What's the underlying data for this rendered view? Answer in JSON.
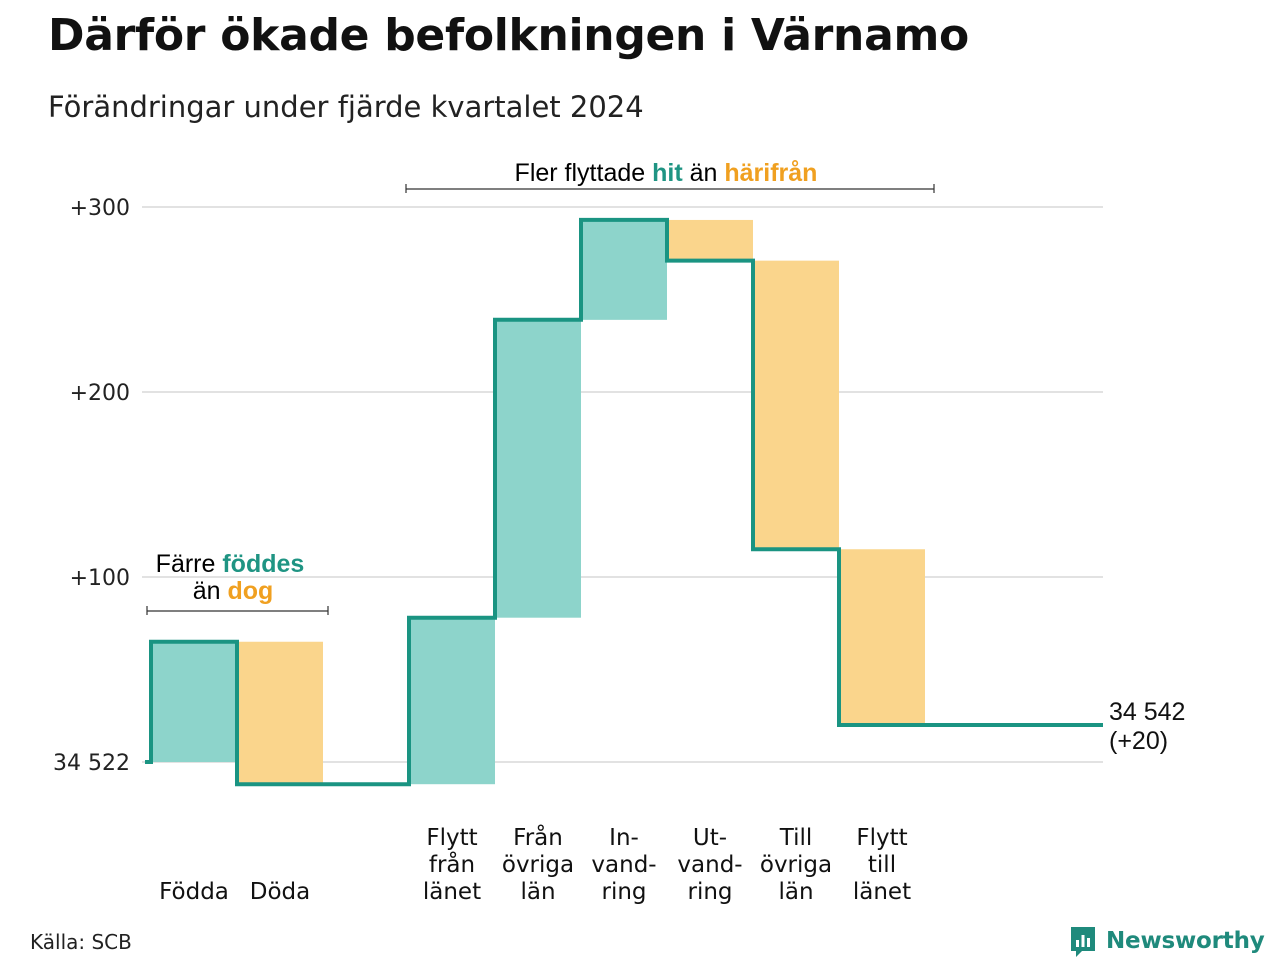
{
  "title": "Därför ökade befolkningen i Värnamo",
  "subtitle": "Förändringar under fjärde kvartalet 2024",
  "source": "Källa: SCB",
  "brand": "Newsworthy",
  "colors": {
    "positive": "#8dd4cb",
    "negative": "#fad58c",
    "line": "#1a9482",
    "accent_pos": "#1f9483",
    "accent_neg": "#f0a020",
    "grid": "#e2e2e2"
  },
  "annotations": {
    "births": {
      "line1_pre": "Färre ",
      "line1_hl": "föddes",
      "line2_pre": "än ",
      "line2_hl": "dog"
    },
    "moves": {
      "pre": "Fler flyttade ",
      "hl1": "hit",
      "mid": " än ",
      "hl2": "härifrån"
    }
  },
  "chart_data": {
    "type": "waterfall",
    "base_label": "34 522",
    "end_label": "34 542",
    "end_change": "(+20)",
    "y_ticks": [
      {
        "value": 0,
        "label": "34 522"
      },
      {
        "value": 100,
        "label": "+100"
      },
      {
        "value": 200,
        "label": "+200"
      },
      {
        "value": 300,
        "label": "+300"
      }
    ],
    "ylim": [
      -12,
      305
    ],
    "steps": [
      {
        "category": [
          "Födda"
        ],
        "value": 65
      },
      {
        "category": [
          "Döda"
        ],
        "value": -77
      },
      {
        "category": [
          "Flytt",
          "från",
          "länet"
        ],
        "value": 90
      },
      {
        "category": [
          "Från",
          "övriga",
          "län"
        ],
        "value": 161
      },
      {
        "category": [
          "In-",
          "vand-",
          "ring"
        ],
        "value": 54
      },
      {
        "category": [
          "Ut-",
          "vand-",
          "ring"
        ],
        "value": -22
      },
      {
        "category": [
          "Till",
          "övriga",
          "län"
        ],
        "value": -156
      },
      {
        "category": [
          "Flytt",
          "till",
          "länet"
        ],
        "value": -95
      }
    ],
    "end_value": 20
  }
}
